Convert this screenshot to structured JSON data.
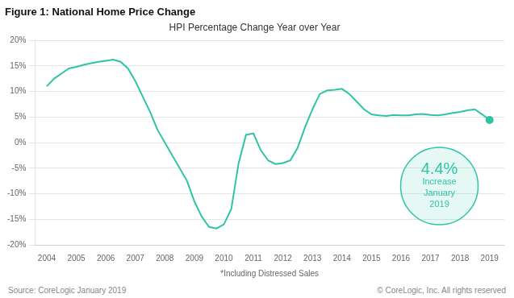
{
  "chart_data": {
    "type": "line",
    "title": "Figure 1: National Home Price Change",
    "subtitle": "HPI Percentage Change Year over Year",
    "xlabel": "*Including Distressed Sales",
    "source": "Source: CoreLogic January 2019",
    "copyright": "© CoreLogic, Inc. All rights reserved",
    "color": "#2ec4a5",
    "grid": "y",
    "legend": false,
    "xlim": [
      2003.6,
      2019.5
    ],
    "xticks": [
      2004,
      2005,
      2006,
      2007,
      2008,
      2009,
      2010,
      2011,
      2012,
      2013,
      2014,
      2015,
      2016,
      2017,
      2018,
      2019
    ],
    "ylim": [
      -20,
      20
    ],
    "yticks": [
      {
        "value": -20,
        "label": "-20%"
      },
      {
        "value": -15,
        "label": "-15%"
      },
      {
        "value": -10,
        "label": "-10%"
      },
      {
        "value": -5,
        "label": "-5%"
      },
      {
        "value": 0,
        "label": "0%"
      },
      {
        "value": 5,
        "label": "5%"
      },
      {
        "value": 10,
        "label": "10%"
      },
      {
        "value": 15,
        "label": "15%"
      },
      {
        "value": 20,
        "label": "20%"
      }
    ],
    "x": [
      2004.0,
      2004.25,
      2004.5,
      2004.75,
      2005.0,
      2005.25,
      2005.5,
      2005.75,
      2006.0,
      2006.25,
      2006.5,
      2006.75,
      2007.0,
      2007.25,
      2007.5,
      2007.75,
      2008.0,
      2008.25,
      2008.5,
      2008.75,
      2009.0,
      2009.25,
      2009.5,
      2009.75,
      2010.0,
      2010.25,
      2010.5,
      2010.75,
      2011.0,
      2011.25,
      2011.5,
      2011.75,
      2012.0,
      2012.25,
      2012.5,
      2012.75,
      2013.0,
      2013.25,
      2013.5,
      2013.75,
      2014.0,
      2014.25,
      2014.5,
      2014.75,
      2015.0,
      2015.25,
      2015.5,
      2015.75,
      2016.0,
      2016.25,
      2016.5,
      2016.75,
      2017.0,
      2017.25,
      2017.5,
      2017.75,
      2018.0,
      2018.25,
      2018.5,
      2018.75,
      2019.0
    ],
    "values": [
      11.0,
      12.5,
      13.5,
      14.5,
      14.8,
      15.2,
      15.5,
      15.8,
      16.0,
      16.2,
      15.8,
      14.5,
      12.0,
      9.0,
      6.0,
      2.5,
      0.0,
      -2.5,
      -5.0,
      -7.5,
      -11.5,
      -14.5,
      -16.5,
      -16.8,
      -16.0,
      -13.0,
      -4.0,
      1.5,
      1.8,
      -1.5,
      -3.5,
      -4.2,
      -4.0,
      -3.5,
      -1.0,
      3.0,
      6.5,
      9.5,
      10.2,
      10.3,
      10.5,
      9.5,
      8.0,
      6.5,
      5.5,
      5.3,
      5.2,
      5.4,
      5.3,
      5.3,
      5.5,
      5.6,
      5.4,
      5.3,
      5.5,
      5.8,
      6.0,
      6.3,
      6.5,
      5.5,
      4.4
    ],
    "annotations": [
      {
        "x": 2017.3,
        "y": -8.5,
        "color": "#2ec4a5",
        "text": [
          "4.4%",
          "Increase",
          "January",
          "2019"
        ]
      }
    ]
  }
}
